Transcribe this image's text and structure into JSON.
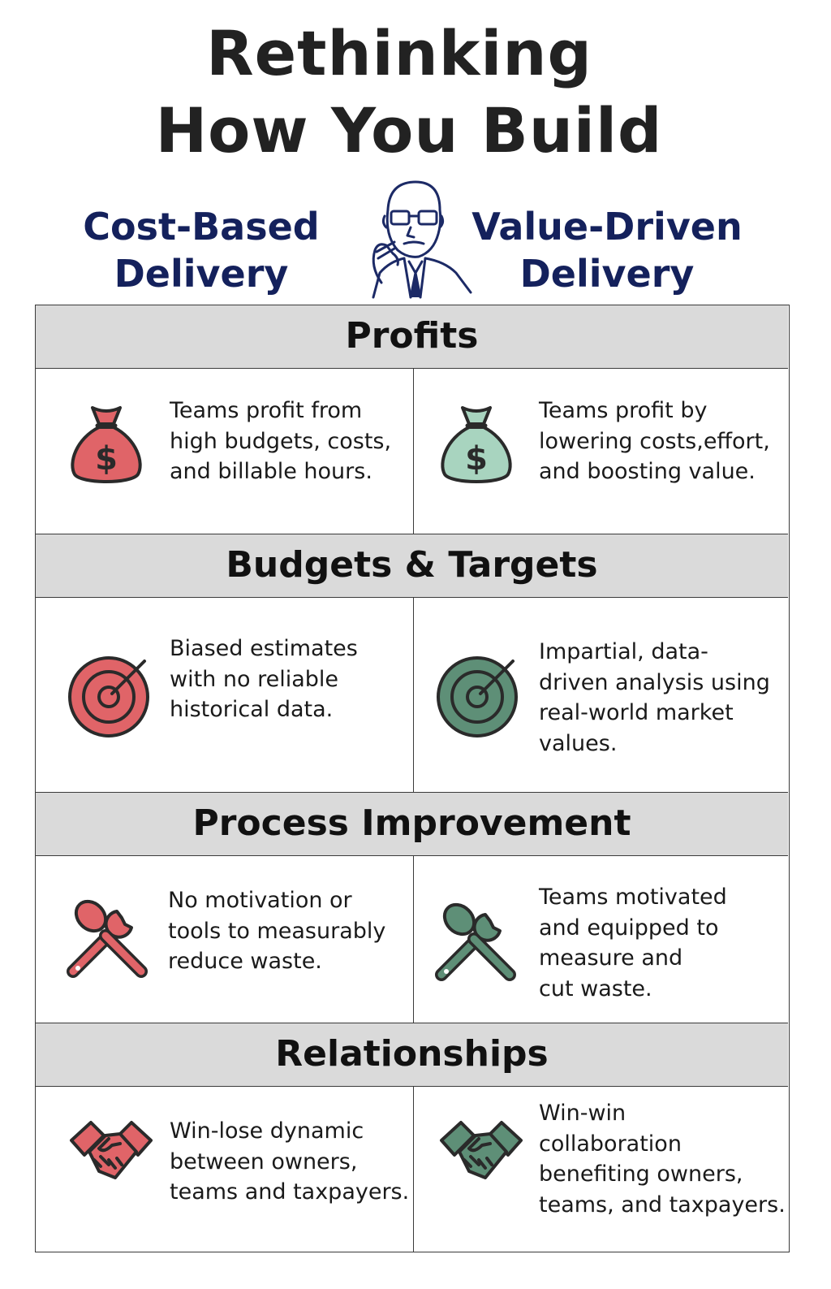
{
  "title": {
    "line1": "Rethinking",
    "line2": "How You Build"
  },
  "columns": {
    "left": "Cost-Based\nDelivery",
    "right": "Value-Driven\nDelivery"
  },
  "portrait_icon": "thinking-man-portrait",
  "colors": {
    "heading_navy": "#14215c",
    "cost_red": "#e06468",
    "value_green": "#5e8f77",
    "value_mint": "#a8d4bf",
    "section_gray": "#dadada"
  },
  "sections": [
    {
      "title": "Profits",
      "icon": "money-bag-icon",
      "cost_text": "Teams profit from\nhigh budgets, costs,\nand billable hours.",
      "value_text": "Teams profit by\nlowering costs,effort,\nand boosting value."
    },
    {
      "title": "Budgets & Targets",
      "icon": "target-icon",
      "cost_text": "Biased estimates\nwith no reliable\nhistorical data.",
      "value_text": "Impartial, data-\ndriven analysis using\nreal-world market\nvalues."
    },
    {
      "title": "Process Improvement",
      "icon": "tools-icon",
      "cost_text": "No motivation or\ntools to measurably\nreduce waste.",
      "value_text": "Teams motivated\nand equipped to\nmeasure and\ncut waste."
    },
    {
      "title": "Relationships",
      "icon": "handshake-icon",
      "cost_text": "Win-lose dynamic\nbetween owners,\nteams and taxpayers.",
      "value_text": "Win-win\ncollaboration\nbenefiting owners,\nteams, and taxpayers."
    }
  ]
}
